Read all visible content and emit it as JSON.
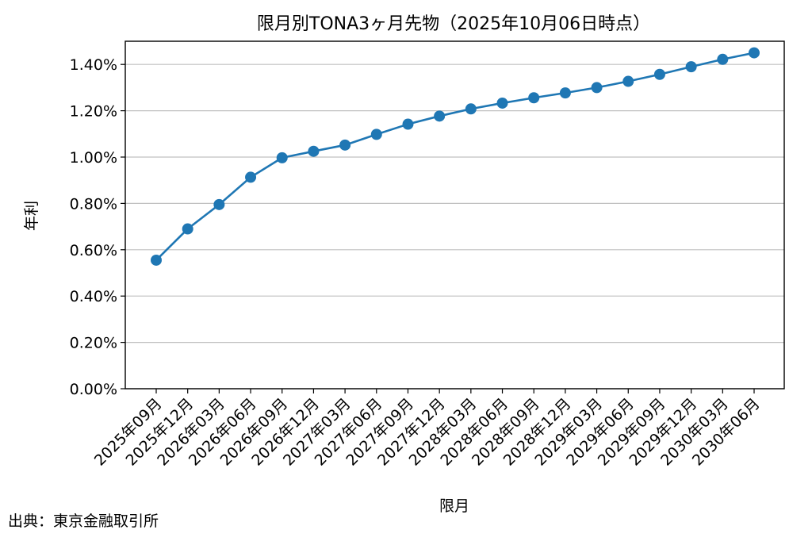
{
  "chart_data": {
    "type": "line",
    "title": "限月別TONA3ヶ月先物（2025年10月06日時点）",
    "xlabel": "限月",
    "ylabel": "年利",
    "categories": [
      "2025年09月",
      "2025年12月",
      "2026年03月",
      "2026年06月",
      "2026年09月",
      "2026年12月",
      "2027年03月",
      "2027年06月",
      "2027年09月",
      "2027年12月",
      "2028年03月",
      "2028年06月",
      "2028年09月",
      "2028年12月",
      "2029年03月",
      "2029年06月",
      "2029年09月",
      "2029年12月",
      "2030年03月",
      "2030年06月"
    ],
    "series": [
      {
        "values": [
          0.555,
          0.69,
          0.795,
          0.913,
          0.997,
          1.025,
          1.052,
          1.098,
          1.142,
          1.177,
          1.208,
          1.233,
          1.256,
          1.277,
          1.3,
          1.327,
          1.357,
          1.39,
          1.422,
          1.45
        ]
      }
    ],
    "ylim": [
      0,
      1.5
    ],
    "yticks": [
      0,
      0.2,
      0.4,
      0.6,
      0.8,
      1.0,
      1.2,
      1.4
    ],
    "ytick_labels": [
      "0.00%",
      "0.20%",
      "0.40%",
      "0.60%",
      "0.80%",
      "1.00%",
      "1.20%",
      "1.40%"
    ],
    "grid": "horizontal",
    "line_color": "#1f77b4",
    "grid_color": "#c0c0c0"
  },
  "source_note": "出典：東京金融取引所"
}
